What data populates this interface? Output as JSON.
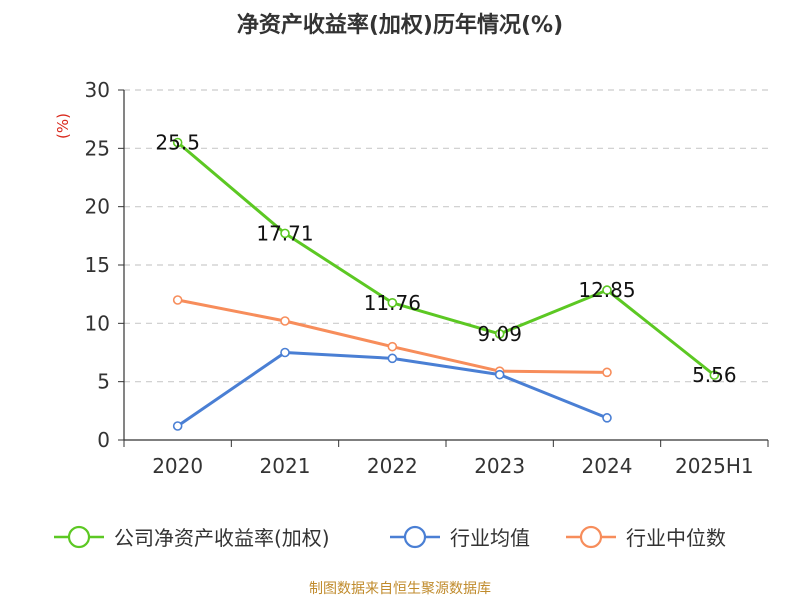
{
  "title": "净资产收益率(加权)历年情况(%)",
  "unit_label": "(%)",
  "source": "制图数据来自恒生聚源数据库",
  "chart_data": {
    "type": "line",
    "title": "净资产收益率(加权)历年情况(%)",
    "xlabel": "",
    "ylabel": "(%)",
    "categories": [
      "2020",
      "2021",
      "2022",
      "2023",
      "2024",
      "2025H1"
    ],
    "ylim": [
      0,
      30
    ],
    "yticks": [
      0,
      5,
      10,
      15,
      20,
      25,
      30
    ],
    "grid": true,
    "legend_position": "bottom",
    "series": [
      {
        "name": "公司净资产收益率(加权)",
        "color": "#5cc823",
        "values": [
          25.5,
          17.71,
          11.76,
          9.09,
          12.85,
          5.56
        ],
        "labels": [
          "25.5",
          "17.71",
          "11.76",
          "9.09",
          "12.85",
          "5.56"
        ]
      },
      {
        "name": "行业均值",
        "color": "#4a7fd4",
        "values": [
          1.2,
          7.5,
          7.0,
          5.6,
          1.9,
          null
        ]
      },
      {
        "name": "行业中位数",
        "color": "#f78d5b",
        "values": [
          12.0,
          10.2,
          8.0,
          5.9,
          5.8,
          null
        ]
      }
    ]
  }
}
